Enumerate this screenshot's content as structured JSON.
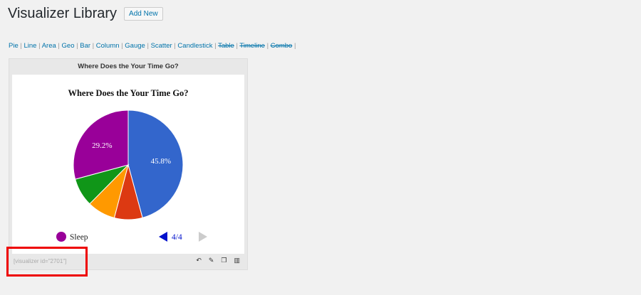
{
  "page": {
    "title": "Visualizer Library",
    "add_new": "Add New"
  },
  "types": [
    {
      "label": "Pie",
      "enabled": true
    },
    {
      "label": "Line",
      "enabled": true
    },
    {
      "label": "Area",
      "enabled": true
    },
    {
      "label": "Geo",
      "enabled": true
    },
    {
      "label": "Bar",
      "enabled": true
    },
    {
      "label": "Column",
      "enabled": true
    },
    {
      "label": "Gauge",
      "enabled": true
    },
    {
      "label": "Scatter",
      "enabled": true
    },
    {
      "label": "Candlestick",
      "enabled": true
    },
    {
      "label": "Table",
      "enabled": false
    },
    {
      "label": "Timeline",
      "enabled": false
    },
    {
      "label": "Combo",
      "enabled": false
    }
  ],
  "card": {
    "title": "Where Does the Your Time Go?",
    "shortcode": "[visualizer id=\"2701\"]"
  },
  "chart_data": {
    "type": "pie",
    "title": "Where Does the Your Time Go?",
    "slices": [
      {
        "value": 45.8,
        "color": "#3366cc",
        "label": "45.8%"
      },
      {
        "value": 8.3,
        "color": "#dc3912"
      },
      {
        "value": 8.3,
        "color": "#ff9900"
      },
      {
        "value": 8.4,
        "color": "#109618"
      },
      {
        "value": 29.2,
        "color": "#990099",
        "label": "29.2%"
      }
    ],
    "legend": {
      "item": "Sleep",
      "color": "#990099",
      "page": "4/4"
    }
  }
}
